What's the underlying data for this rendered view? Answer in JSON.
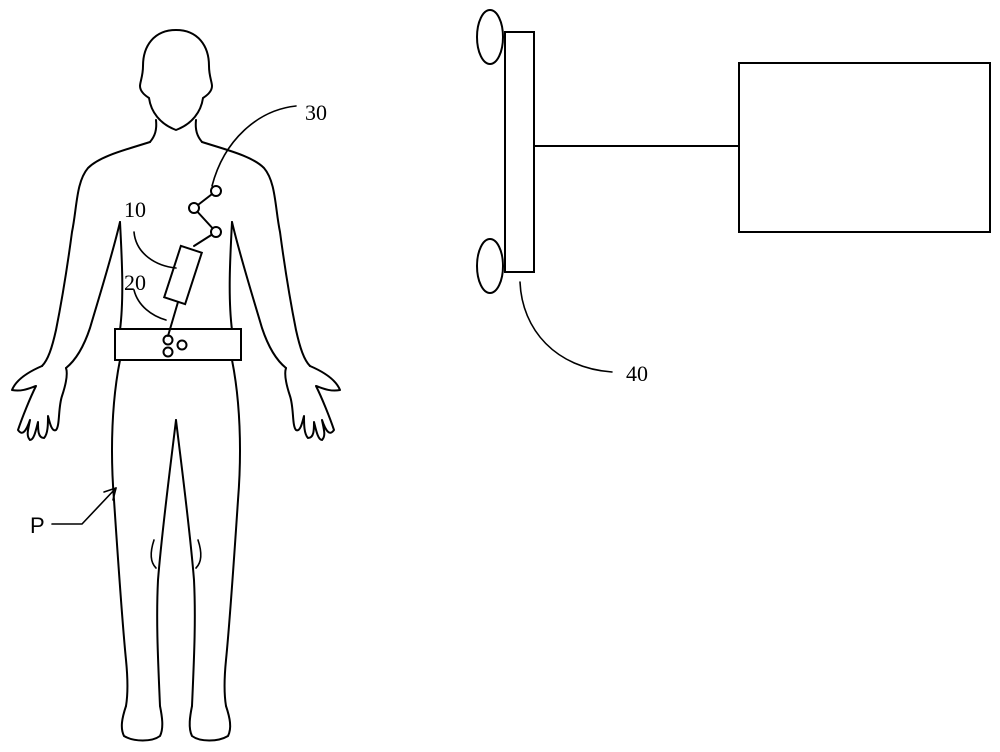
{
  "labels": {
    "ref_10": "10",
    "ref_20": "20",
    "ref_30": "30",
    "ref_40": "40",
    "ref_p": "P"
  }
}
